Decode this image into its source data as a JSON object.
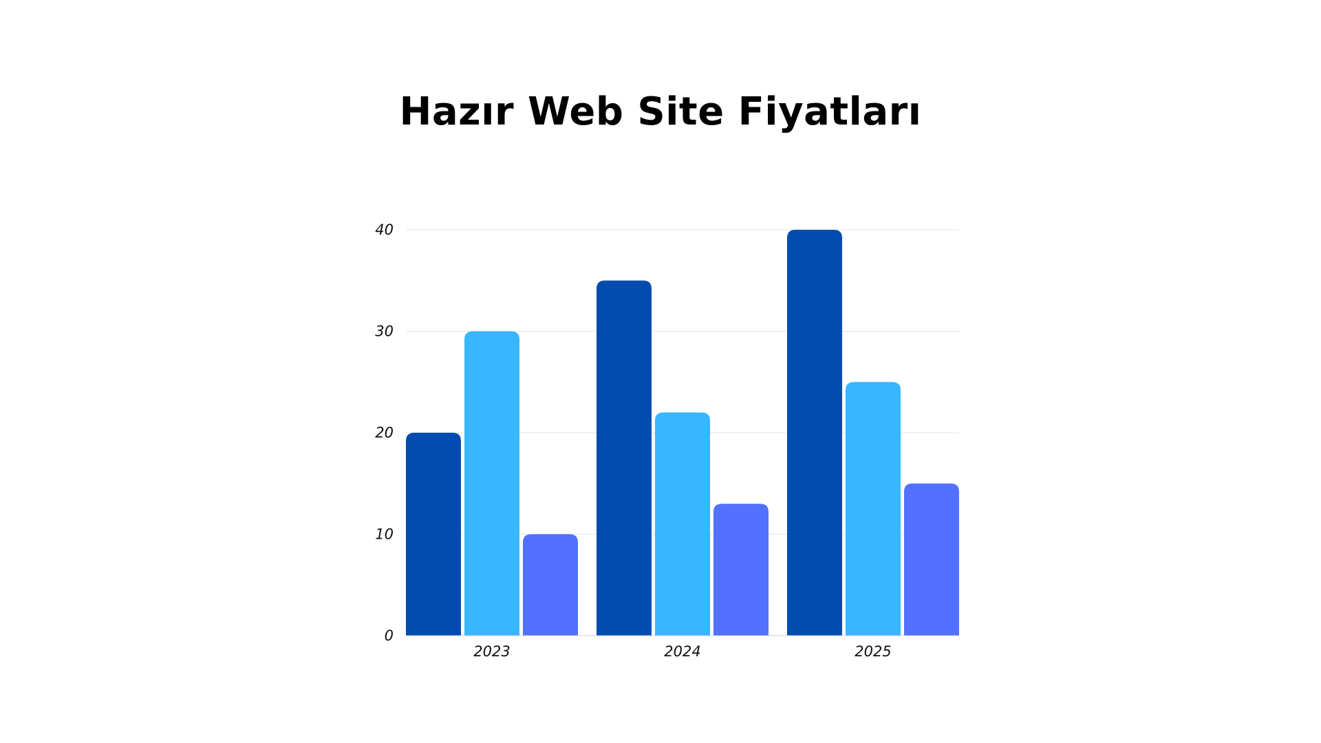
{
  "chart_data": {
    "type": "bar",
    "title": "Hazır Web Site Fiyatları",
    "xlabel": "",
    "ylabel": "",
    "categories": [
      "2023",
      "2024",
      "2025"
    ],
    "series": [
      {
        "values": [
          20,
          35,
          40
        ],
        "color": "#024CAF"
      },
      {
        "values": [
          30,
          22,
          25
        ],
        "color": "#38B6FF"
      },
      {
        "values": [
          10,
          13,
          15
        ],
        "color": "#5271FF"
      }
    ],
    "ylim": [
      0,
      40
    ],
    "yticks": [
      0,
      10,
      20,
      30,
      40
    ],
    "grid": true,
    "legend": "none"
  }
}
